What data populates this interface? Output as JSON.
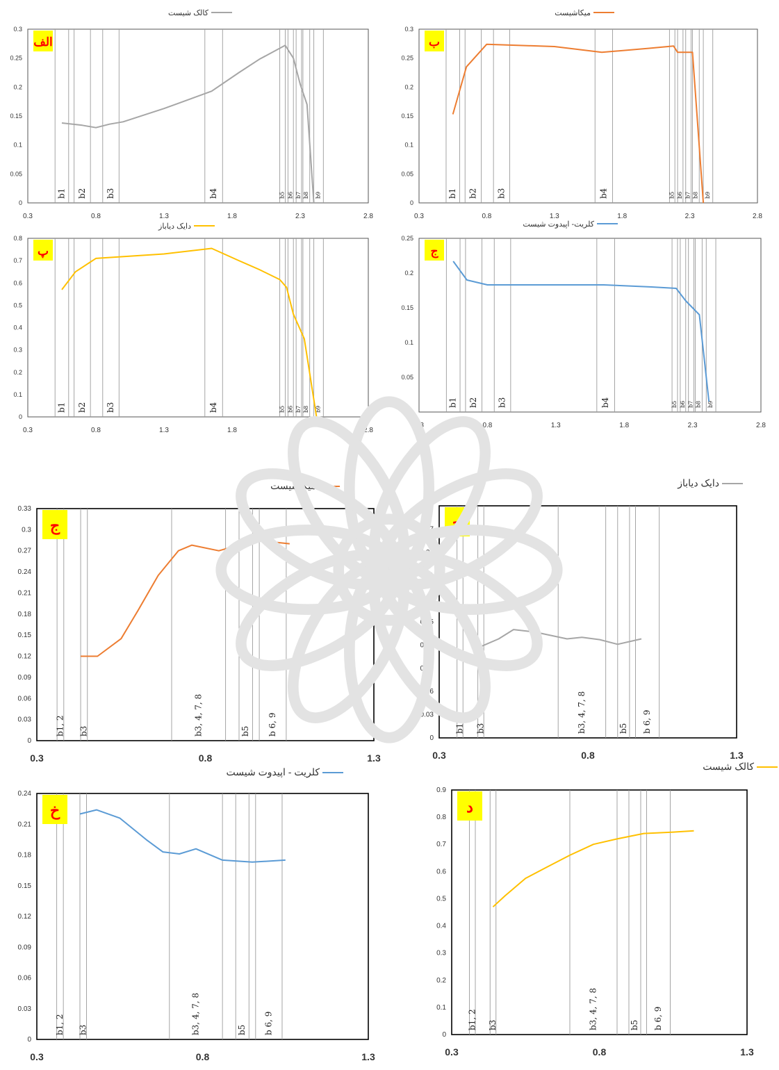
{
  "chart_data": [
    {
      "type": "line",
      "panel": "الف",
      "legend": "کالک شیست",
      "color": "#a6a6a6",
      "label_bg": "#ffff00",
      "label_color": "#ff0000",
      "xlim": [
        0.3,
        2.8
      ],
      "xticks": [
        "0.3",
        "0.8",
        "1.3",
        "1.8",
        "2.3",
        "2.8"
      ],
      "ylim": [
        0,
        0.3
      ],
      "yticks": [
        "0",
        "0.05",
        "0.1",
        "0.15",
        "0.2",
        "0.25",
        "0.3"
      ],
      "x": [
        0.55,
        0.7,
        0.8,
        0.9,
        1.0,
        1.3,
        1.65,
        1.85,
        2.0,
        2.19,
        2.25,
        2.3,
        2.35,
        2.4
      ],
      "y": [
        0.138,
        0.134,
        0.13,
        0.136,
        0.14,
        0.163,
        0.193,
        0.225,
        0.248,
        0.272,
        0.25,
        0.205,
        0.17,
        0.0
      ],
      "bands": [
        {
          "label": "b1",
          "x1": 0.5,
          "x2": 0.6
        },
        {
          "label": "b2",
          "x1": 0.64,
          "x2": 0.76
        },
        {
          "label": "b3",
          "x1": 0.85,
          "x2": 0.97
        },
        {
          "label": "b4",
          "x1": 1.6,
          "x2": 1.73
        },
        {
          "label": "b5",
          "x1": 2.15,
          "x2": 2.19
        },
        {
          "label": "b6",
          "x1": 2.21,
          "x2": 2.25
        },
        {
          "label": "b7",
          "x1": 2.27,
          "x2": 2.31
        },
        {
          "label": "b8",
          "x1": 2.32,
          "x2": 2.37
        },
        {
          "label": "b9",
          "x1": 2.4,
          "x2": 2.47
        }
      ]
    },
    {
      "type": "line",
      "panel": "ب",
      "legend": "میکاشیست",
      "color": "#ed7d31",
      "label_bg": "#ffff00",
      "label_color": "#ff0000",
      "xlim": [
        0.3,
        2.8
      ],
      "xticks": [
        "0.3",
        "0.8",
        "1.3",
        "1.8",
        "2.3",
        "2.8"
      ],
      "ylim": [
        0,
        0.3
      ],
      "yticks": [
        "0",
        "0.05",
        "0.1",
        "0.15",
        "0.2",
        "0.25",
        "0.3"
      ],
      "x": [
        0.55,
        0.65,
        0.8,
        1.3,
        1.65,
        2.0,
        2.18,
        2.21,
        2.26,
        2.32,
        2.4
      ],
      "y": [
        0.153,
        0.235,
        0.274,
        0.27,
        0.26,
        0.267,
        0.271,
        0.26,
        0.26,
        0.26,
        0.0
      ],
      "bands": [
        {
          "label": "b1",
          "x1": 0.5,
          "x2": 0.6
        },
        {
          "label": "b2",
          "x1": 0.64,
          "x2": 0.76
        },
        {
          "label": "b3",
          "x1": 0.85,
          "x2": 0.97
        },
        {
          "label": "b4",
          "x1": 1.6,
          "x2": 1.73
        },
        {
          "label": "b5",
          "x1": 2.15,
          "x2": 2.19
        },
        {
          "label": "b6",
          "x1": 2.21,
          "x2": 2.25
        },
        {
          "label": "b7",
          "x1": 2.27,
          "x2": 2.31
        },
        {
          "label": "b8",
          "x1": 2.32,
          "x2": 2.37
        },
        {
          "label": "b9",
          "x1": 2.4,
          "x2": 2.47
        }
      ]
    },
    {
      "type": "line",
      "panel": "پ",
      "legend": "دایک دیاباز",
      "color": "#ffc000",
      "label_bg": "#ffff00",
      "label_color": "#ff0000",
      "xlim": [
        0.3,
        2.8
      ],
      "xticks": [
        "0.3",
        "0.8",
        "1.3",
        "1.8",
        "2.3",
        "2.8"
      ],
      "ylim": [
        0,
        0.8
      ],
      "yticks": [
        "0",
        "0.1",
        "0.2",
        "0.3",
        "0.4",
        "0.5",
        "0.6",
        "0.7",
        "0.8"
      ],
      "x": [
        0.55,
        0.65,
        0.8,
        1.3,
        1.65,
        1.85,
        2.0,
        2.15,
        2.2,
        2.25,
        2.33,
        2.42
      ],
      "y": [
        0.57,
        0.65,
        0.71,
        0.73,
        0.755,
        0.7,
        0.66,
        0.615,
        0.58,
        0.46,
        0.35,
        0.0
      ],
      "bands": [
        {
          "label": "b1",
          "x1": 0.5,
          "x2": 0.6
        },
        {
          "label": "b2",
          "x1": 0.64,
          "x2": 0.76
        },
        {
          "label": "b3",
          "x1": 0.85,
          "x2": 0.97
        },
        {
          "label": "b4",
          "x1": 1.6,
          "x2": 1.73
        },
        {
          "label": "b5",
          "x1": 2.15,
          "x2": 2.19
        },
        {
          "label": "b6",
          "x1": 2.21,
          "x2": 2.25
        },
        {
          "label": "b7",
          "x1": 2.27,
          "x2": 2.31
        },
        {
          "label": "b8",
          "x1": 2.32,
          "x2": 2.37
        },
        {
          "label": "b9",
          "x1": 2.4,
          "x2": 2.47
        }
      ]
    },
    {
      "type": "line",
      "panel": "ج",
      "legend": "کلریت- اپیدوت شیست",
      "color": "#5b9bd5",
      "label_bg": "#ffff00",
      "label_color": "#ff0000",
      "xlim": [
        0.3,
        2.8
      ],
      "xticks": [
        "0.3",
        "0.8",
        "1.3",
        "1.8",
        "2.3",
        "2.8"
      ],
      "ylim": [
        0,
        0.25
      ],
      "yticks": [
        "0",
        "0.05",
        "0.1",
        "0.15",
        "0.2",
        "0.25"
      ],
      "x": [
        0.55,
        0.65,
        0.8,
        1.3,
        1.65,
        2.0,
        2.18,
        2.25,
        2.35,
        2.42
      ],
      "y": [
        0.217,
        0.19,
        0.183,
        0.183,
        0.183,
        0.18,
        0.178,
        0.16,
        0.14,
        0.015
      ],
      "bands": [
        {
          "label": "b1",
          "x1": 0.5,
          "x2": 0.6
        },
        {
          "label": "b2",
          "x1": 0.64,
          "x2": 0.76
        },
        {
          "label": "b3",
          "x1": 0.85,
          "x2": 0.97
        },
        {
          "label": "b4",
          "x1": 1.6,
          "x2": 1.73
        },
        {
          "label": "b5",
          "x1": 2.15,
          "x2": 2.19
        },
        {
          "label": "b6",
          "x1": 2.21,
          "x2": 2.25
        },
        {
          "label": "b7",
          "x1": 2.27,
          "x2": 2.31
        },
        {
          "label": "b8",
          "x1": 2.32,
          "x2": 2.37
        },
        {
          "label": "b9",
          "x1": 2.4,
          "x2": 2.47
        }
      ]
    },
    {
      "type": "line",
      "panel": "ج",
      "legend": "میکاشیست",
      "color": "#ed7d31",
      "label_bg": "#ffff00",
      "label_color": "#ff0000",
      "xlim": [
        0.3,
        1.3
      ],
      "xticks": [
        "0.3",
        "0.8",
        "1.3"
      ],
      "ylim": [
        0,
        0.33
      ],
      "yticks": [
        "0",
        "0.03",
        "0.06",
        "0.09",
        "0.12",
        "0.15",
        "0.18",
        "0.21",
        "0.24",
        "0.27",
        "0.3",
        "0.33"
      ],
      "x": [
        0.43,
        0.48,
        0.55,
        0.6,
        0.66,
        0.72,
        0.76,
        0.84,
        0.95,
        1.05
      ],
      "y": [
        0.12,
        0.12,
        0.145,
        0.185,
        0.235,
        0.27,
        0.278,
        0.27,
        0.285,
        0.28
      ],
      "bands": [
        {
          "label": "b1, 2",
          "x1": 0.36,
          "x2": 0.38
        },
        {
          "label": "b3",
          "x1": 0.43,
          "x2": 0.45
        },
        {
          "label": "b3, 4, 7, 8",
          "x1": 0.7,
          "x2": 0.86
        },
        {
          "label": "b5",
          "x1": 0.9,
          "x2": 0.94
        },
        {
          "label": "b 6, 9",
          "x1": 0.96,
          "x2": 1.04
        }
      ]
    },
    {
      "type": "line",
      "panel": "ح",
      "legend": "دایک دیاباز",
      "color": "#a6a6a6",
      "label_bg": "#ffff00",
      "label_color": "#ff0000",
      "xlim": [
        0.3,
        1.3
      ],
      "xticks": [
        "0.3",
        "0.8",
        "1.3"
      ],
      "ylim": [
        0,
        0.3
      ],
      "yticks": [
        "0",
        "0.03",
        "0.06",
        "0.09",
        "0.12",
        "0.15",
        "0.18",
        "0.21",
        "0.24",
        "0.27",
        "0.3"
      ],
      "x": [
        0.44,
        0.5,
        0.55,
        0.62,
        0.73,
        0.78,
        0.84,
        0.9,
        0.98
      ],
      "y": [
        0.118,
        0.128,
        0.14,
        0.137,
        0.128,
        0.13,
        0.127,
        0.121,
        0.128
      ],
      "bands": [
        {
          "label": "b1, 2",
          "x1": 0.36,
          "x2": 0.38
        },
        {
          "label": "b3",
          "x1": 0.43,
          "x2": 0.45
        },
        {
          "label": "b3, 4, 7, 8",
          "x1": 0.7,
          "x2": 0.86
        },
        {
          "label": "b5",
          "x1": 0.9,
          "x2": 0.94
        },
        {
          "label": "b 6, 9",
          "x1": 0.96,
          "x2": 1.04
        }
      ]
    },
    {
      "type": "line",
      "panel": "خ",
      "legend": "کلریت - اپیدوت شیست",
      "color": "#5b9bd5",
      "label_bg": "#ffff00",
      "label_color": "#ff0000",
      "xlim": [
        0.3,
        1.3
      ],
      "xticks": [
        "0.3",
        "0.8",
        "1.3"
      ],
      "ylim": [
        0,
        0.24
      ],
      "yticks": [
        "0",
        "0.03",
        "0.06",
        "0.09",
        "0.12",
        "0.15",
        "0.18",
        "0.21",
        "0.24"
      ],
      "x": [
        0.43,
        0.48,
        0.55,
        0.63,
        0.68,
        0.73,
        0.78,
        0.86,
        0.95,
        1.05
      ],
      "y": [
        0.22,
        0.224,
        0.216,
        0.195,
        0.183,
        0.181,
        0.186,
        0.175,
        0.173,
        0.175
      ],
      "bands": [
        {
          "label": "b1, 2",
          "x1": 0.36,
          "x2": 0.38
        },
        {
          "label": "b3",
          "x1": 0.43,
          "x2": 0.45
        },
        {
          "label": "b3, 4, 7, 8",
          "x1": 0.7,
          "x2": 0.86
        },
        {
          "label": "b5",
          "x1": 0.9,
          "x2": 0.94
        },
        {
          "label": "b 6, 9",
          "x1": 0.96,
          "x2": 1.04
        }
      ]
    },
    {
      "type": "line",
      "panel": "د",
      "legend": "کالک شیست",
      "color": "#ffc000",
      "label_bg": "#ffff00",
      "label_color": "#ff0000",
      "xlim": [
        0.3,
        1.3
      ],
      "xticks": [
        "0.3",
        "0.8",
        "1.3"
      ],
      "ylim": [
        0,
        0.9
      ],
      "yticks": [
        "0",
        "0.1",
        "0.2",
        "0.3",
        "0.4",
        "0.5",
        "0.6",
        "0.7",
        "0.8",
        "0.9"
      ],
      "x": [
        0.44,
        0.48,
        0.55,
        0.62,
        0.7,
        0.78,
        0.86,
        0.95,
        1.05,
        1.12
      ],
      "y": [
        0.47,
        0.51,
        0.575,
        0.615,
        0.66,
        0.7,
        0.72,
        0.74,
        0.745,
        0.75
      ],
      "bands": [
        {
          "label": "b1, 2",
          "x1": 0.36,
          "x2": 0.38
        },
        {
          "label": "b3",
          "x1": 0.43,
          "x2": 0.45
        },
        {
          "label": "b3, 4, 7, 8",
          "x1": 0.7,
          "x2": 0.86
        },
        {
          "label": "b5",
          "x1": 0.9,
          "x2": 0.94
        },
        {
          "label": "b 6, 9",
          "x1": 0.96,
          "x2": 1.04
        }
      ]
    }
  ]
}
